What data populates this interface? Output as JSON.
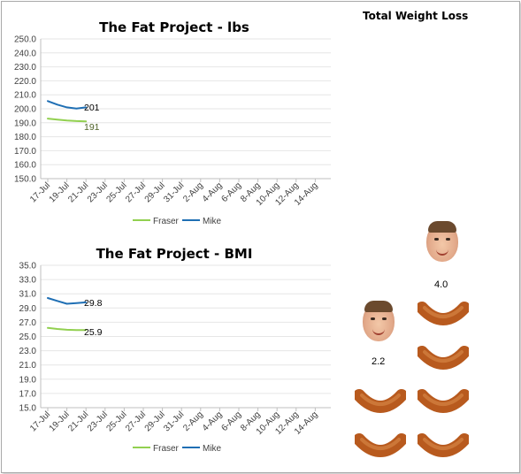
{
  "charts": [
    {
      "title": "The Fat Project - lbs",
      "ymin": 150,
      "ymax": 250,
      "ystep": 10,
      "ydecimals": 1,
      "categories": [
        "17-Jul",
        "19-Jul",
        "21-Jul",
        "23-Jul",
        "25-Jul",
        "27-Jul",
        "29-Jul",
        "31-Jul",
        "2-Aug",
        "4-Aug",
        "6-Aug",
        "8-Aug",
        "10-Aug",
        "12-Aug",
        "14-Aug"
      ],
      "end_labels": {
        "Mike": "201",
        "Fraser": "191"
      }
    },
    {
      "title": "The Fat Project - BMI",
      "ymin": 15,
      "ymax": 35,
      "ystep": 2,
      "ydecimals": 1,
      "categories": [
        "17-Jul",
        "19-Jul",
        "21-Jul",
        "23-Jul",
        "25-Jul",
        "27-Jul",
        "29-Jul",
        "31-Jul",
        "2-Aug",
        "4-Aug",
        "6-Aug",
        "8-Aug",
        "10-Aug",
        "12-Aug",
        "14-Aug"
      ],
      "end_labels": {
        "Mike": "29.8",
        "Fraser": "25.9"
      }
    }
  ],
  "chart_data": [
    {
      "type": "line",
      "title": "The Fat Project - lbs",
      "x": [
        "17-Jul",
        "18-Jul",
        "19-Jul",
        "20-Jul",
        "21-Jul"
      ],
      "series": [
        {
          "name": "Fraser",
          "color": "#92d050",
          "values": [
            193.0,
            192.2,
            191.6,
            191.2,
            191.0
          ]
        },
        {
          "name": "Mike",
          "color": "#1f6fb4",
          "values": [
            205.5,
            203.0,
            201.0,
            200.2,
            201.0
          ]
        }
      ],
      "ylim": [
        150,
        250
      ],
      "legend": "bottom",
      "grid": true
    },
    {
      "type": "line",
      "title": "The Fat Project - BMI",
      "x": [
        "17-Jul",
        "18-Jul",
        "19-Jul",
        "20-Jul",
        "21-Jul"
      ],
      "series": [
        {
          "name": "Fraser",
          "color": "#92d050",
          "values": [
            26.2,
            26.05,
            25.95,
            25.9,
            25.9
          ]
        },
        {
          "name": "Mike",
          "color": "#1f6fb4",
          "values": [
            30.4,
            30.0,
            29.6,
            29.7,
            29.8
          ]
        }
      ],
      "ylim": [
        15,
        35
      ],
      "legend": "bottom",
      "grid": true
    }
  ],
  "weight_loss": {
    "title": "Total Weight Loss",
    "people": [
      {
        "value": "4.0",
        "sausages": 4
      },
      {
        "value": "2.2",
        "sausages": 2
      }
    ]
  },
  "legend": {
    "fraser": "Fraser",
    "mike": "Mike"
  },
  "colors": {
    "fraser": "#92d050",
    "mike": "#1f6fb4",
    "grid": "#e6e6e6",
    "axis": "#bfbfbf",
    "sausage": "#b85a1e"
  },
  "icons": {
    "sausage": "sausage-icon",
    "face": "face-photo-icon"
  }
}
